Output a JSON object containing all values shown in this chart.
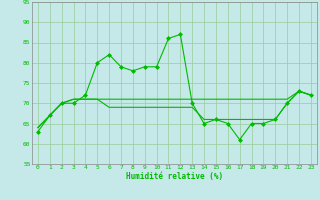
{
  "xlabel": "Humidité relative (%)",
  "xlim": [
    -0.5,
    23.5
  ],
  "ylim": [
    55,
    95
  ],
  "yticks": [
    55,
    60,
    65,
    70,
    75,
    80,
    85,
    90,
    95
  ],
  "xticks": [
    0,
    1,
    2,
    3,
    4,
    5,
    6,
    7,
    8,
    9,
    10,
    11,
    12,
    13,
    14,
    15,
    16,
    17,
    18,
    19,
    20,
    21,
    22,
    23
  ],
  "bg_color": "#c5e8e8",
  "grid_color": "#99cc99",
  "line_color": "#00bb00",
  "line1": [
    63,
    67,
    70,
    70,
    72,
    80,
    82,
    79,
    78,
    79,
    79,
    86,
    87,
    70,
    65,
    66,
    65,
    61,
    65,
    65,
    66,
    70,
    73,
    72
  ],
  "line2": [
    64,
    67,
    70,
    71,
    71,
    71,
    71,
    71,
    71,
    71,
    71,
    71,
    71,
    71,
    71,
    71,
    71,
    71,
    71,
    71,
    71,
    71,
    73,
    72
  ],
  "line3": [
    64,
    67,
    70,
    71,
    71,
    71,
    69,
    69,
    69,
    69,
    69,
    69,
    69,
    69,
    66,
    66,
    66,
    66,
    66,
    66,
    66,
    70,
    73,
    72
  ]
}
